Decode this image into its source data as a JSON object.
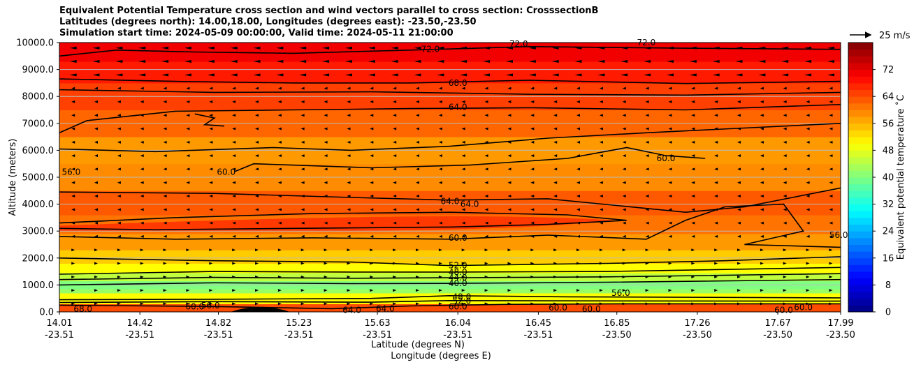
{
  "chart_data": {
    "type": "heatmap",
    "title_lines": [
      "Equivalent Potential Temperature cross section and wind vectors parallel to cross section: CrosssectionB",
      "Latitudes (degrees north): 14.00,18.00, Longitudes (degrees east): -23.50,-23.50",
      "Simulation start time: 2024-05-09 00:00:00, Valid time: 2024-05-11 21:00:00"
    ],
    "ylabel": "Altitude (meters)",
    "xlabel_lat": "Latitude (degrees N)",
    "xlabel_lon": "Longitude (degrees E)",
    "ylim": [
      0,
      10000
    ],
    "y_ticks": [
      "0.0",
      "1000.0",
      "2000.0",
      "3000.0",
      "4000.0",
      "5000.0",
      "6000.0",
      "7000.0",
      "8000.0",
      "9000.0",
      "10000.0"
    ],
    "x_ticks_lat": [
      "14.01",
      "14.42",
      "14.82",
      "15.23",
      "15.63",
      "16.04",
      "16.45",
      "16.85",
      "17.26",
      "17.67",
      "17.99"
    ],
    "x_ticks_lon": [
      "-23.51",
      "-23.51",
      "-23.51",
      "-23.51",
      "-23.51",
      "-23.51",
      "-23.51",
      "-23.50",
      "-23.50",
      "-23.50",
      "-23.50"
    ],
    "colorbar": {
      "label": "Equivalent potential temperature ˚C",
      "range": [
        0,
        80
      ],
      "ticks": [
        "0",
        "8",
        "16",
        "24",
        "32",
        "40",
        "48",
        "56",
        "64",
        "72"
      ]
    },
    "wind_key": {
      "label": "25 m/s",
      "value": 25
    },
    "contour_labels": [
      {
        "text": "72.0",
        "lat": 15.9,
        "alt": 9750
      },
      {
        "text": "72.0",
        "lat": 16.35,
        "alt": 9950
      },
      {
        "text": "72.0",
        "lat": 17.0,
        "alt": 10000
      },
      {
        "text": "68.0",
        "lat": 16.04,
        "alt": 8500
      },
      {
        "text": "64.0",
        "lat": 16.04,
        "alt": 7600
      },
      {
        "text": "56.0",
        "lat": 14.07,
        "alt": 5200
      },
      {
        "text": "60.0",
        "lat": 14.86,
        "alt": 5200
      },
      {
        "text": "60.0",
        "lat": 17.1,
        "alt": 5700
      },
      {
        "text": "64.0",
        "lat": 16.0,
        "alt": 4100
      },
      {
        "text": "64.0",
        "lat": 16.1,
        "alt": 4000
      },
      {
        "text": "60.0",
        "lat": 16.04,
        "alt": 2750
      },
      {
        "text": "56.0",
        "lat": 17.98,
        "alt": 2850
      },
      {
        "text": "52.0",
        "lat": 16.04,
        "alt": 1720
      },
      {
        "text": "48.0",
        "lat": 16.04,
        "alt": 1480
      },
      {
        "text": "44.0",
        "lat": 16.04,
        "alt": 1270
      },
      {
        "text": "40.0",
        "lat": 16.04,
        "alt": 1060
      },
      {
        "text": "48.0",
        "lat": 16.06,
        "alt": 560
      },
      {
        "text": "52.0",
        "lat": 16.06,
        "alt": 400
      },
      {
        "text": "60.0",
        "lat": 16.04,
        "alt": 200
      },
      {
        "text": "68.0",
        "lat": 14.13,
        "alt": 100
      },
      {
        "text": "60.0",
        "lat": 14.7,
        "alt": 200
      },
      {
        "text": "56.0",
        "lat": 14.78,
        "alt": 230
      },
      {
        "text": "64.0",
        "lat": 15.5,
        "alt": 70
      },
      {
        "text": "64.0",
        "lat": 15.67,
        "alt": 120
      },
      {
        "text": "60.0",
        "lat": 16.55,
        "alt": 150
      },
      {
        "text": "60.0",
        "lat": 16.72,
        "alt": 100
      },
      {
        "text": "56.0",
        "lat": 16.87,
        "alt": 700
      },
      {
        "text": "60.0",
        "lat": 17.7,
        "alt": 70
      },
      {
        "text": "60.0",
        "lat": 17.8,
        "alt": 170
      }
    ]
  }
}
